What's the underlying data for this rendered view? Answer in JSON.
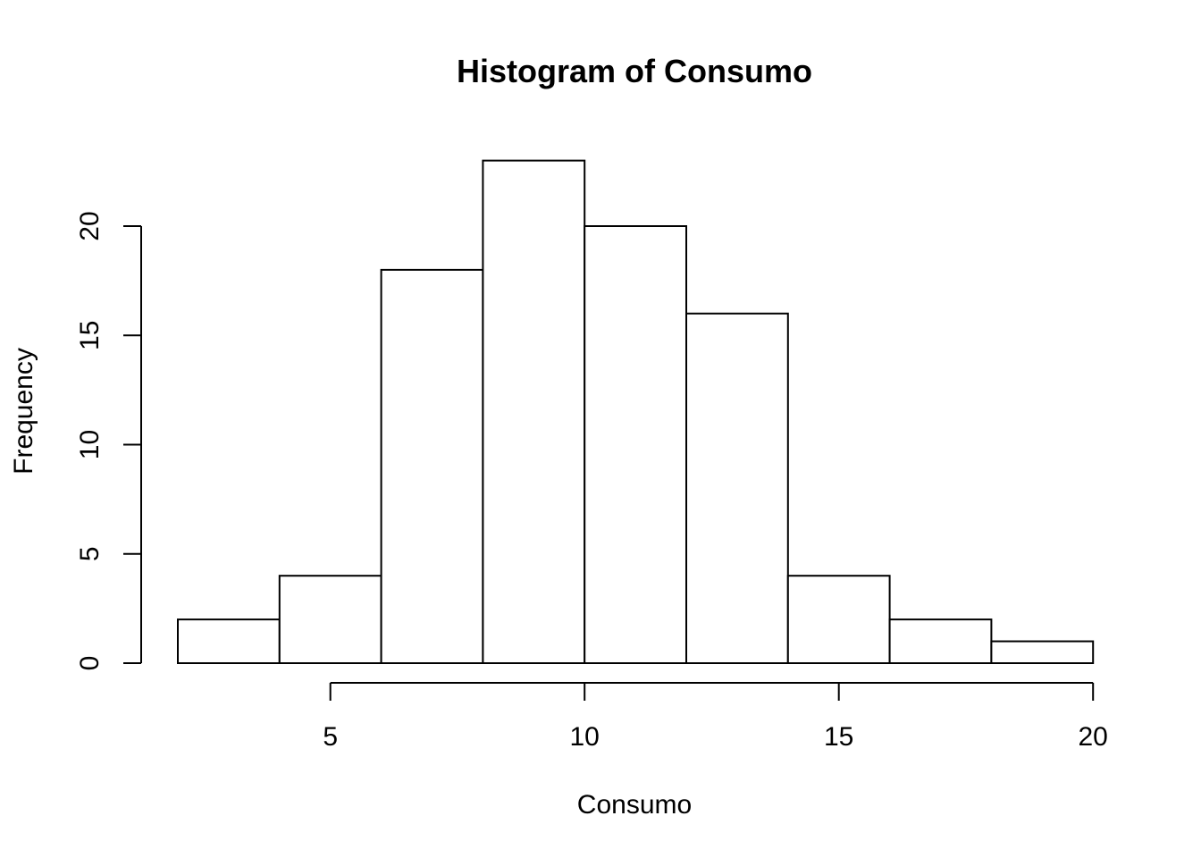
{
  "chart_data": {
    "type": "bar",
    "subtype": "histogram",
    "title": "Histogram of Consumo",
    "xlabel": "Consumo",
    "ylabel": "Frequency",
    "bins": [
      {
        "start": 2,
        "end": 4,
        "count": 2
      },
      {
        "start": 4,
        "end": 6,
        "count": 4
      },
      {
        "start": 6,
        "end": 8,
        "count": 18
      },
      {
        "start": 8,
        "end": 10,
        "count": 23
      },
      {
        "start": 10,
        "end": 12,
        "count": 20
      },
      {
        "start": 12,
        "end": 14,
        "count": 16
      },
      {
        "start": 14,
        "end": 16,
        "count": 4
      },
      {
        "start": 16,
        "end": 18,
        "count": 2
      },
      {
        "start": 18,
        "end": 20,
        "count": 1
      }
    ],
    "xlim": [
      2,
      20
    ],
    "ylim": [
      0,
      23
    ],
    "x_ticks": [
      5,
      10,
      15,
      20
    ],
    "y_ticks": [
      0,
      5,
      10,
      15,
      20
    ],
    "grid": false,
    "bar_fill": "#ffffff",
    "bar_stroke": "#000000"
  }
}
